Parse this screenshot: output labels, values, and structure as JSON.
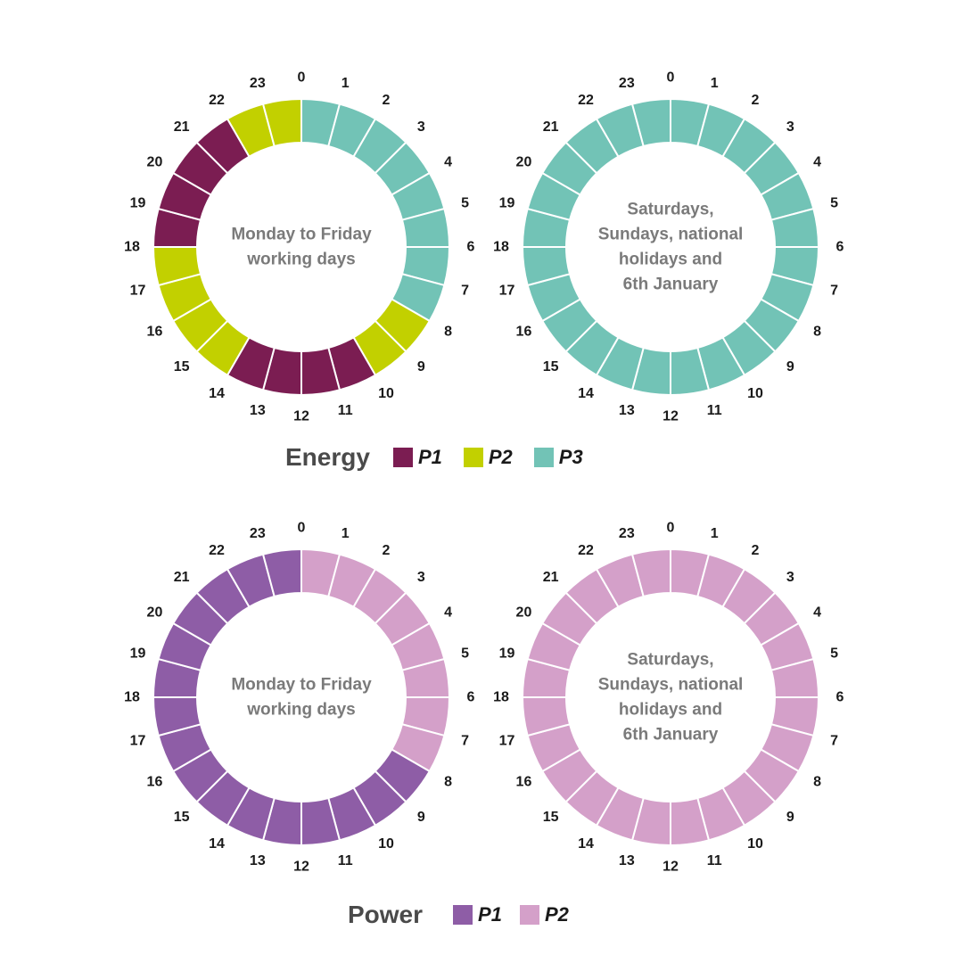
{
  "colors": {
    "energy_p1": "#7b1d52",
    "energy_p2": "#c2d000",
    "energy_p3": "#72c3b6",
    "power_p1": "#8e5da6",
    "power_p2": "#d4a0c9"
  },
  "chart_data": [
    {
      "type": "radial-schedule",
      "group": "Energy",
      "title": "",
      "center_text": [
        "Monday to Friday",
        "working days"
      ],
      "hours": [
        0,
        1,
        2,
        3,
        4,
        5,
        6,
        7,
        8,
        9,
        10,
        11,
        12,
        13,
        14,
        15,
        16,
        17,
        18,
        19,
        20,
        21,
        22,
        23
      ],
      "period_by_hour": [
        "P3",
        "P3",
        "P3",
        "P3",
        "P3",
        "P3",
        "P3",
        "P3",
        "P2",
        "P2",
        "P1",
        "P1",
        "P1",
        "P1",
        "P2",
        "P2",
        "P2",
        "P2",
        "P1",
        "P1",
        "P1",
        "P1",
        "P2",
        "P2"
      ]
    },
    {
      "type": "radial-schedule",
      "group": "Energy",
      "title": "",
      "center_text": [
        "Saturdays,",
        "Sundays, national",
        "holidays and",
        "6th January"
      ],
      "hours": [
        0,
        1,
        2,
        3,
        4,
        5,
        6,
        7,
        8,
        9,
        10,
        11,
        12,
        13,
        14,
        15,
        16,
        17,
        18,
        19,
        20,
        21,
        22,
        23
      ],
      "period_by_hour": [
        "P3",
        "P3",
        "P3",
        "P3",
        "P3",
        "P3",
        "P3",
        "P3",
        "P3",
        "P3",
        "P3",
        "P3",
        "P3",
        "P3",
        "P3",
        "P3",
        "P3",
        "P3",
        "P3",
        "P3",
        "P3",
        "P3",
        "P3",
        "P3"
      ]
    },
    {
      "type": "radial-schedule",
      "group": "Power",
      "title": "",
      "center_text": [
        "Monday to Friday",
        "working days"
      ],
      "hours": [
        0,
        1,
        2,
        3,
        4,
        5,
        6,
        7,
        8,
        9,
        10,
        11,
        12,
        13,
        14,
        15,
        16,
        17,
        18,
        19,
        20,
        21,
        22,
        23
      ],
      "period_by_hour": [
        "P2",
        "P2",
        "P2",
        "P2",
        "P2",
        "P2",
        "P2",
        "P2",
        "P1",
        "P1",
        "P1",
        "P1",
        "P1",
        "P1",
        "P1",
        "P1",
        "P1",
        "P1",
        "P1",
        "P1",
        "P1",
        "P1",
        "P1",
        "P1"
      ]
    },
    {
      "type": "radial-schedule",
      "group": "Power",
      "title": "",
      "center_text": [
        "Saturdays,",
        "Sundays, national",
        "holidays and",
        "6th January"
      ],
      "hours": [
        0,
        1,
        2,
        3,
        4,
        5,
        6,
        7,
        8,
        9,
        10,
        11,
        12,
        13,
        14,
        15,
        16,
        17,
        18,
        19,
        20,
        21,
        22,
        23
      ],
      "period_by_hour": [
        "P2",
        "P2",
        "P2",
        "P2",
        "P2",
        "P2",
        "P2",
        "P2",
        "P2",
        "P2",
        "P2",
        "P2",
        "P2",
        "P2",
        "P2",
        "P2",
        "P2",
        "P2",
        "P2",
        "P2",
        "P2",
        "P2",
        "P2",
        "P2"
      ]
    }
  ],
  "legends": {
    "energy": {
      "title": "Energy",
      "items": [
        {
          "label": "P1",
          "color": "#7b1d52"
        },
        {
          "label": "P2",
          "color": "#c2d000"
        },
        {
          "label": "P3",
          "color": "#72c3b6"
        }
      ]
    },
    "power": {
      "title": "Power",
      "items": [
        {
          "label": "P1",
          "color": "#8e5da6"
        },
        {
          "label": "P2",
          "color": "#d4a0c9"
        }
      ]
    }
  }
}
